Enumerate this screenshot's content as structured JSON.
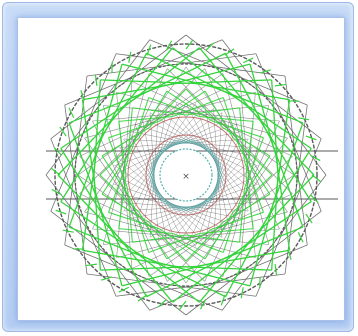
{
  "diagram": {
    "colors": {
      "frame": "#c5dbf7",
      "panel": "#ffffff",
      "gray_lines": "#5a5a5a",
      "green_lines": "#35d43c",
      "red_ring": "#b24b4b",
      "teal_ring": "#58b0b0"
    },
    "glyphs": {
      "center_mark": "×"
    }
  }
}
